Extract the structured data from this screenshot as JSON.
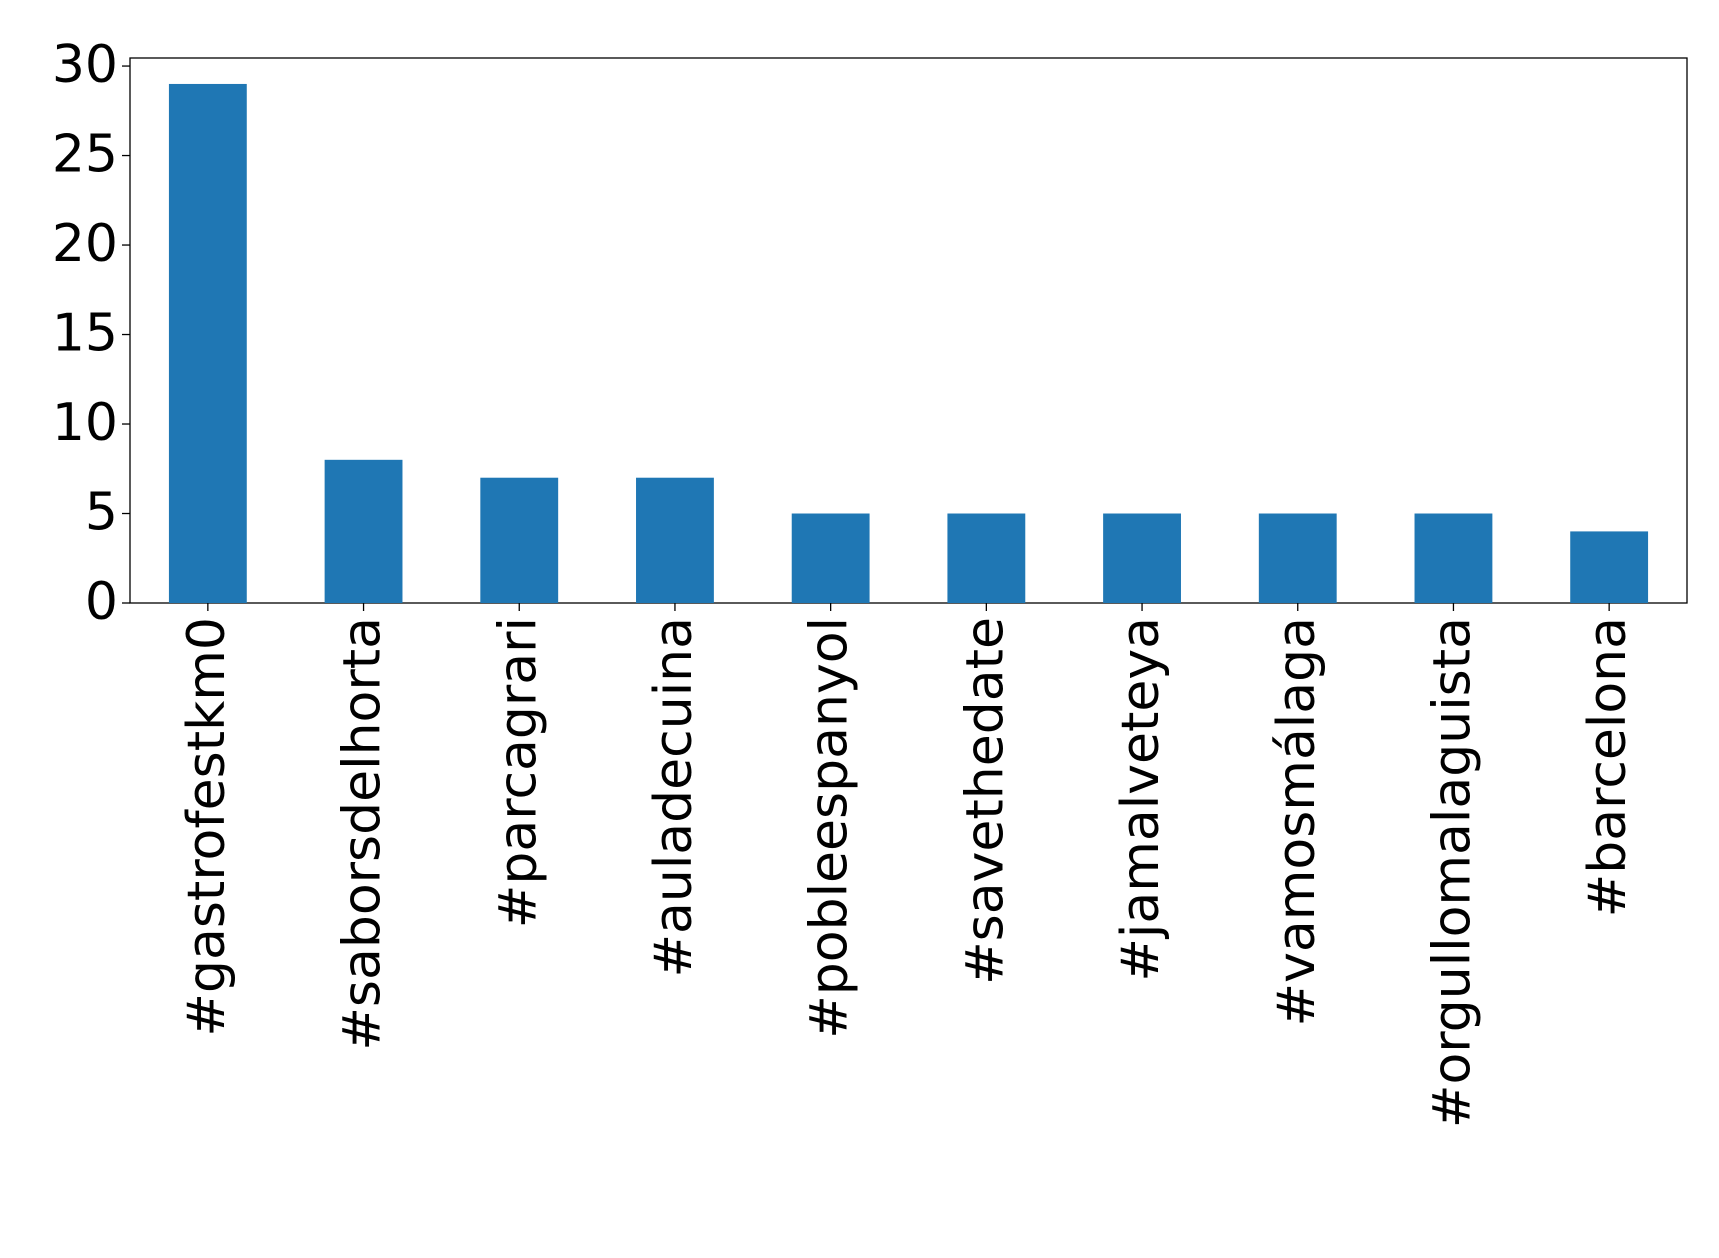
{
  "chart_data": {
    "type": "bar",
    "categories": [
      "#gastrofestkm0",
      "#saborsdelhorta",
      "#parcagrari",
      "#auladecuina",
      "#pobleespanyol",
      "#savethedate",
      "#jamalveteya",
      "#vamosmálaga",
      "#orgullomalaguista",
      "#barcelona"
    ],
    "values": [
      29,
      8,
      7,
      7,
      5,
      5,
      5,
      5,
      5,
      4
    ],
    "color": "#1f77b4",
    "ylim": [
      0,
      30.45
    ],
    "yticks": [
      0,
      5,
      10,
      15,
      20,
      25,
      30
    ],
    "grid": false
  }
}
